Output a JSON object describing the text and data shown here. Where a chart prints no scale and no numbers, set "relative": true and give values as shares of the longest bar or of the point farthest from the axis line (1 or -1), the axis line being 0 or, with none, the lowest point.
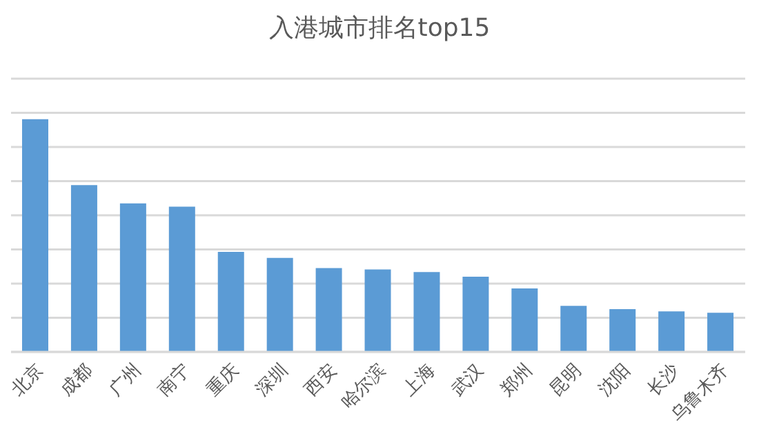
{
  "chart_data": {
    "type": "bar",
    "title": "入港城市排名top15",
    "categories": [
      "北京",
      "成都",
      "广州",
      "南宁",
      "重庆",
      "深圳",
      "西安",
      "哈尔滨",
      "上海",
      "武汉",
      "郑州",
      "昆明",
      "沈阳",
      "长沙",
      "乌鲁木齐"
    ],
    "values": [
      1,
      0.717,
      0.638,
      0.624,
      0.43,
      0.404,
      0.36,
      0.354,
      0.343,
      0.323,
      0.273,
      0.198,
      0.184,
      0.174,
      0.168
    ],
    "color": "#5b9bd5",
    "relative": true,
    "grid": "y"
  }
}
